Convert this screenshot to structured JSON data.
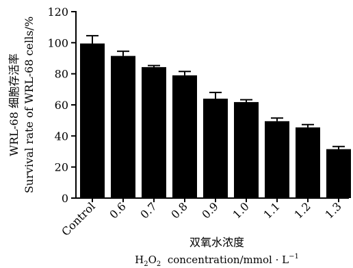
{
  "chart_data": {
    "type": "bar",
    "categories": [
      "Control",
      "0.6",
      "0.7",
      "0.8",
      "0.9",
      "1.0",
      "1.1",
      "1.2",
      "1.3"
    ],
    "values": [
      99.5,
      91.5,
      84.3,
      79.0,
      64.0,
      61.8,
      49.5,
      45.5,
      31.5
    ],
    "errors": [
      5.0,
      3.0,
      1.0,
      2.5,
      4.0,
      1.5,
      2.0,
      1.8,
      1.7
    ],
    "ylim": [
      0,
      120
    ],
    "yticks": [
      0,
      20,
      40,
      60,
      80,
      100,
      120
    ],
    "ylabel_cn": "WRL-68 细胞存活率",
    "ylabel_en": "Survival rate of WRL-68 cells/%",
    "xlabel_cn": "双氧水浓度",
    "xlabel_en": {
      "h": "H",
      "sub1": "2",
      "o": "O",
      "sub2": "2",
      "rest": "  concentration/mmol · L",
      "sup": "−1"
    },
    "grid": false,
    "bar_color": "#000000"
  }
}
